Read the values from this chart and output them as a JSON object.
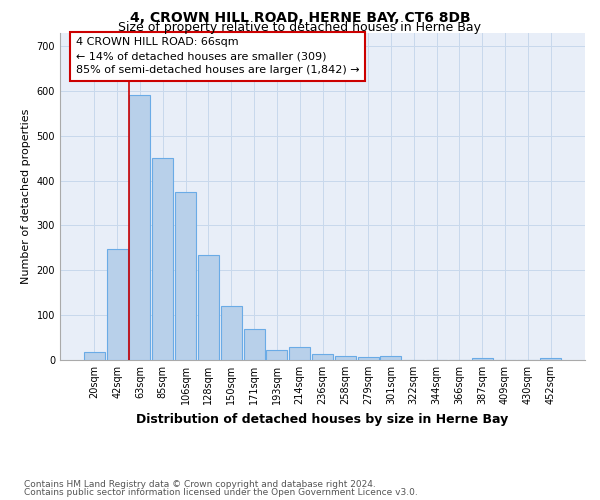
{
  "title": "4, CROWN HILL ROAD, HERNE BAY, CT6 8DB",
  "subtitle": "Size of property relative to detached houses in Herne Bay",
  "xlabel": "Distribution of detached houses by size in Herne Bay",
  "ylabel": "Number of detached properties",
  "footer_line1": "Contains HM Land Registry data © Crown copyright and database right 2024.",
  "footer_line2": "Contains public sector information licensed under the Open Government Licence v3.0.",
  "bar_labels": [
    "20sqm",
    "42sqm",
    "63sqm",
    "85sqm",
    "106sqm",
    "128sqm",
    "150sqm",
    "171sqm",
    "193sqm",
    "214sqm",
    "236sqm",
    "258sqm",
    "279sqm",
    "301sqm",
    "322sqm",
    "344sqm",
    "366sqm",
    "387sqm",
    "409sqm",
    "430sqm",
    "452sqm"
  ],
  "bar_values": [
    17,
    248,
    590,
    450,
    375,
    235,
    120,
    68,
    23,
    30,
    13,
    10,
    7,
    8,
    0,
    0,
    0,
    5,
    0,
    0,
    5
  ],
  "bar_color": "#b8d0ea",
  "bar_edge_color": "#6aabe6",
  "vline_x_index": 2,
  "annotation_text": "4 CROWN HILL ROAD: 66sqm\n← 14% of detached houses are smaller (309)\n85% of semi-detached houses are larger (1,842) →",
  "annotation_box_facecolor": "#ffffff",
  "annotation_box_edgecolor": "#cc0000",
  "vline_color": "#cc0000",
  "grid_color": "#c8d8ec",
  "background_color": "#e8eef8",
  "ylim": [
    0,
    730
  ],
  "yticks": [
    0,
    100,
    200,
    300,
    400,
    500,
    600,
    700
  ],
  "title_fontsize": 10,
  "subtitle_fontsize": 9,
  "xlabel_fontsize": 9,
  "ylabel_fontsize": 8,
  "tick_fontsize": 7,
  "annotation_fontsize": 8,
  "footer_fontsize": 6.5
}
